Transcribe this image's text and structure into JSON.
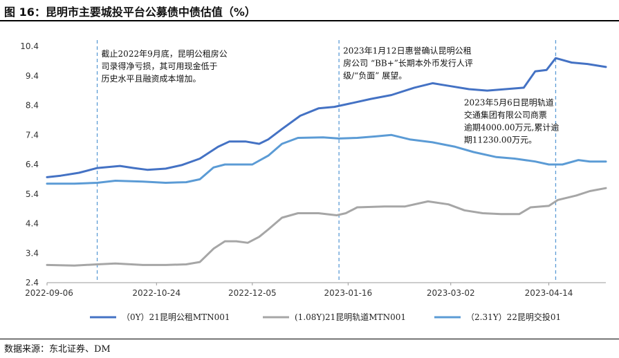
{
  "title": "图 16：昆明市主要城投平台公募债中债估值（%）",
  "source": "数据来源：东北证券、DM",
  "colors": {
    "s0": "#4472c4",
    "s1": "#a6a6a6",
    "s2": "#5b9bd5",
    "vline": "#5b9bd5"
  },
  "chart_data": {
    "type": "line",
    "title": "昆明市主要城投平台公募债中债估值（%）",
    "xlabel": "",
    "ylabel": "",
    "ylim": [
      2.4,
      10.4
    ],
    "yticks": [
      "10.4",
      "9.4",
      "8.4",
      "7.4",
      "6.4",
      "5.4",
      "4.4",
      "3.4",
      "2.4"
    ],
    "ytick_values": [
      10.4,
      9.4,
      8.4,
      7.4,
      6.4,
      5.4,
      4.4,
      3.4,
      2.4
    ],
    "x_start": "2022-09-06",
    "x_end": "2023-05-09",
    "xticks": [
      "2022-09-06",
      "2022-10-24",
      "2022-12-05",
      "2023-01-16",
      "2023-03-02",
      "2023-04-14"
    ],
    "grid": false,
    "legend_position": "bottom",
    "series": [
      {
        "name": "（0Y）21昆明公租MTN001",
        "points": [
          [
            "2022-09-06",
            5.97
          ],
          [
            "2022-09-12",
            6.02
          ],
          [
            "2022-09-20",
            6.12
          ],
          [
            "2022-09-28",
            6.28
          ],
          [
            "2022-10-08",
            6.35
          ],
          [
            "2022-10-14",
            6.28
          ],
          [
            "2022-10-20",
            6.22
          ],
          [
            "2022-10-28",
            6.26
          ],
          [
            "2022-11-04",
            6.38
          ],
          [
            "2022-11-12",
            6.6
          ],
          [
            "2022-11-20",
            7.0
          ],
          [
            "2022-11-25",
            7.18
          ],
          [
            "2022-12-02",
            7.18
          ],
          [
            "2022-12-08",
            7.1
          ],
          [
            "2022-12-12",
            7.25
          ],
          [
            "2022-12-18",
            7.6
          ],
          [
            "2022-12-26",
            8.05
          ],
          [
            "2023-01-03",
            8.3
          ],
          [
            "2023-01-10",
            8.35
          ],
          [
            "2023-01-16",
            8.45
          ],
          [
            "2023-01-26",
            8.62
          ],
          [
            "2023-02-04",
            8.75
          ],
          [
            "2023-02-14",
            9.0
          ],
          [
            "2023-02-22",
            9.15
          ],
          [
            "2023-03-02",
            9.05
          ],
          [
            "2023-03-10",
            8.95
          ],
          [
            "2023-03-18",
            8.9
          ],
          [
            "2023-03-26",
            8.95
          ],
          [
            "2023-04-03",
            9.0
          ],
          [
            "2023-04-08",
            9.55
          ],
          [
            "2023-04-13",
            9.6
          ],
          [
            "2023-04-17",
            10.0
          ],
          [
            "2023-04-24",
            9.85
          ],
          [
            "2023-05-01",
            9.8
          ],
          [
            "2023-05-09",
            9.7
          ]
        ]
      },
      {
        "name": "(1.08Y)21昆明轨道MTN001",
        "points": [
          [
            "2022-09-06",
            3.0
          ],
          [
            "2022-09-18",
            2.98
          ],
          [
            "2022-09-28",
            3.02
          ],
          [
            "2022-10-06",
            3.05
          ],
          [
            "2022-10-18",
            3.0
          ],
          [
            "2022-10-28",
            3.0
          ],
          [
            "2022-11-06",
            3.02
          ],
          [
            "2022-11-12",
            3.1
          ],
          [
            "2022-11-18",
            3.55
          ],
          [
            "2022-11-23",
            3.8
          ],
          [
            "2022-11-28",
            3.8
          ],
          [
            "2022-12-03",
            3.75
          ],
          [
            "2022-12-08",
            3.95
          ],
          [
            "2022-12-12",
            4.2
          ],
          [
            "2022-12-18",
            4.6
          ],
          [
            "2022-12-25",
            4.75
          ],
          [
            "2023-01-03",
            4.75
          ],
          [
            "2023-01-11",
            4.68
          ],
          [
            "2023-01-15",
            4.75
          ],
          [
            "2023-01-20",
            4.95
          ],
          [
            "2023-02-01",
            4.98
          ],
          [
            "2023-02-10",
            4.98
          ],
          [
            "2023-02-20",
            5.15
          ],
          [
            "2023-03-01",
            5.05
          ],
          [
            "2023-03-08",
            4.85
          ],
          [
            "2023-03-16",
            4.75
          ],
          [
            "2023-03-24",
            4.72
          ],
          [
            "2023-04-01",
            4.72
          ],
          [
            "2023-04-06",
            4.95
          ],
          [
            "2023-04-14",
            5.0
          ],
          [
            "2023-04-18",
            5.2
          ],
          [
            "2023-04-26",
            5.35
          ],
          [
            "2023-05-02",
            5.5
          ],
          [
            "2023-05-09",
            5.6
          ]
        ]
      },
      {
        "name": "（2.31Y）22昆明交投01",
        "points": [
          [
            "2022-09-06",
            5.75
          ],
          [
            "2022-09-18",
            5.75
          ],
          [
            "2022-09-28",
            5.78
          ],
          [
            "2022-10-06",
            5.85
          ],
          [
            "2022-10-18",
            5.82
          ],
          [
            "2022-10-28",
            5.78
          ],
          [
            "2022-11-06",
            5.8
          ],
          [
            "2022-11-12",
            5.9
          ],
          [
            "2022-11-18",
            6.3
          ],
          [
            "2022-11-23",
            6.4
          ],
          [
            "2022-12-01",
            6.4
          ],
          [
            "2022-12-05",
            6.4
          ],
          [
            "2022-12-12",
            6.7
          ],
          [
            "2022-12-18",
            7.1
          ],
          [
            "2022-12-25",
            7.3
          ],
          [
            "2023-01-05",
            7.32
          ],
          [
            "2023-01-12",
            7.28
          ],
          [
            "2023-01-20",
            7.3
          ],
          [
            "2023-01-28",
            7.35
          ],
          [
            "2023-02-04",
            7.4
          ],
          [
            "2023-02-12",
            7.25
          ],
          [
            "2023-02-22",
            7.15
          ],
          [
            "2023-03-04",
            7.0
          ],
          [
            "2023-03-12",
            6.82
          ],
          [
            "2023-03-22",
            6.65
          ],
          [
            "2023-03-30",
            6.6
          ],
          [
            "2023-04-08",
            6.5
          ],
          [
            "2023-04-14",
            6.4
          ],
          [
            "2023-04-20",
            6.4
          ],
          [
            "2023-04-27",
            6.55
          ],
          [
            "2023-05-02",
            6.5
          ],
          [
            "2023-05-09",
            6.5
          ]
        ]
      }
    ],
    "vlines": [
      "2022-09-28",
      "2023-01-12",
      "2023-04-17"
    ],
    "annotations": [
      {
        "lines": [
          "截止2022年9月底，昆明公租房公",
          "司录得净亏损，其可用现金低于",
          "历史水平且融资成本增加。"
        ],
        "anchor": "2022-09-28",
        "y": 10.05
      },
      {
        "lines": [
          "2023年1月12日惠誉确认昆明公租",
          "房公司 “BB+”长期本外币发行人评",
          "级/“负面” 展望。"
        ],
        "anchor": "2023-01-12",
        "y": 10.15
      },
      {
        "lines": [
          "2023年5月6日昆明轨道",
          "交通集团有限公司商票",
          "逾期4000.00万元,累计逾",
          "期11230.00万元。"
        ],
        "anchor": "2023-03-06",
        "y": 8.4
      }
    ]
  }
}
